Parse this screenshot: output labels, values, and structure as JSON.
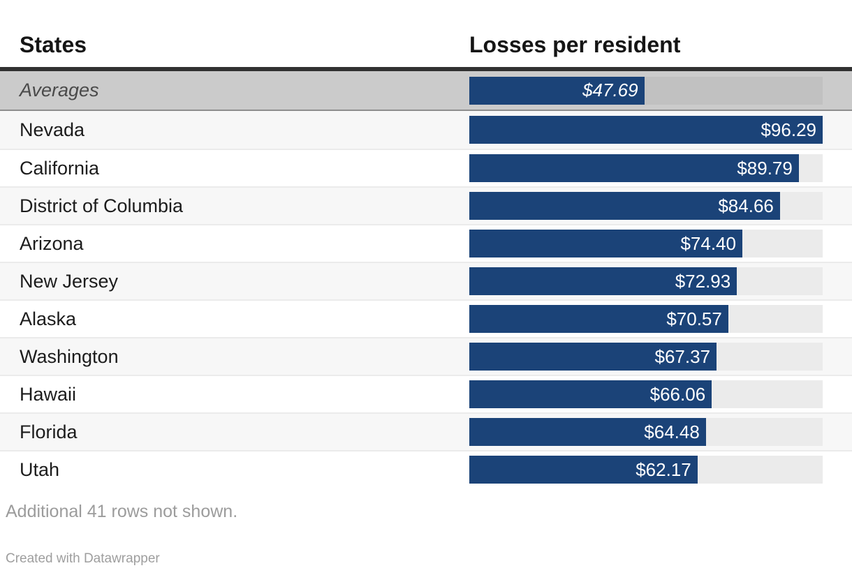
{
  "table": {
    "columns": [
      "States",
      "Losses per resident"
    ],
    "averages": {
      "label": "Averages",
      "value": 47.69,
      "display": "$47.69"
    },
    "rows": [
      {
        "label": "Nevada",
        "value": 96.29,
        "display": "$96.29"
      },
      {
        "label": "California",
        "value": 89.79,
        "display": "$89.79"
      },
      {
        "label": "District of Columbia",
        "value": 84.66,
        "display": "$84.66"
      },
      {
        "label": "Arizona",
        "value": 74.4,
        "display": "$74.40"
      },
      {
        "label": "New Jersey",
        "value": 72.93,
        "display": "$72.93"
      },
      {
        "label": "Alaska",
        "value": 70.57,
        "display": "$70.57"
      },
      {
        "label": "Washington",
        "value": 67.37,
        "display": "$67.37"
      },
      {
        "label": "Hawaii",
        "value": 66.06,
        "display": "$66.06"
      },
      {
        "label": "Florida",
        "value": 64.48,
        "display": "$64.48"
      },
      {
        "label": "Utah",
        "value": 62.17,
        "display": "$62.17"
      }
    ],
    "max_value": 96.29
  },
  "note": "Additional 41 rows not shown.",
  "footer": "Created with Datawrapper",
  "colors": {
    "bar": "#1b4378",
    "track": "#ebebeb",
    "averages_row_bg": "#cbcbcb",
    "averages_track": "#c1c1c1",
    "header_divider": "#313131",
    "alt_row_bg": "#f7f7f7"
  },
  "chart_data": {
    "type": "bar",
    "title": "",
    "columns": [
      "States",
      "Losses per resident"
    ],
    "categories": [
      "Averages",
      "Nevada",
      "California",
      "District of Columbia",
      "Arizona",
      "New Jersey",
      "Alaska",
      "Washington",
      "Hawaii",
      "Florida",
      "Utah"
    ],
    "values": [
      47.69,
      96.29,
      89.79,
      84.66,
      74.4,
      72.93,
      70.57,
      67.37,
      66.06,
      64.48,
      62.17
    ],
    "value_labels": [
      "$47.69",
      "$96.29",
      "$89.79",
      "$84.66",
      "$74.40",
      "$72.93",
      "$70.57",
      "$67.37",
      "$66.06",
      "$64.48",
      "$62.17"
    ],
    "xlabel": "Losses per resident",
    "ylabel": "States",
    "xlim": [
      0,
      96.29
    ],
    "grid": false,
    "legend": false,
    "orientation": "horizontal",
    "note": "Additional 41 rows not shown.",
    "attribution": "Created with Datawrapper"
  }
}
